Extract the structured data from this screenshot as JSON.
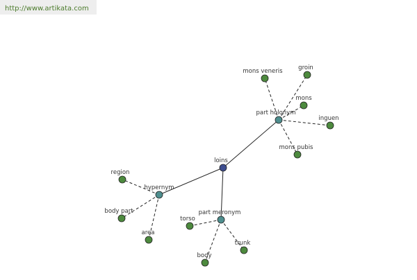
{
  "header": {
    "url": "http://www.artikata.com"
  },
  "nodes": [
    {
      "label": "loins"
    },
    {
      "label": "part holonym"
    },
    {
      "label": "hypernym"
    },
    {
      "label": "part meronym"
    },
    {
      "label": "mons veneris"
    },
    {
      "label": "groin"
    },
    {
      "label": "mons"
    },
    {
      "label": "inguen"
    },
    {
      "label": "mons pubis"
    },
    {
      "label": "region"
    },
    {
      "label": "body part"
    },
    {
      "label": "area"
    },
    {
      "label": "torso"
    },
    {
      "label": "body"
    },
    {
      "label": "trunk"
    }
  ]
}
